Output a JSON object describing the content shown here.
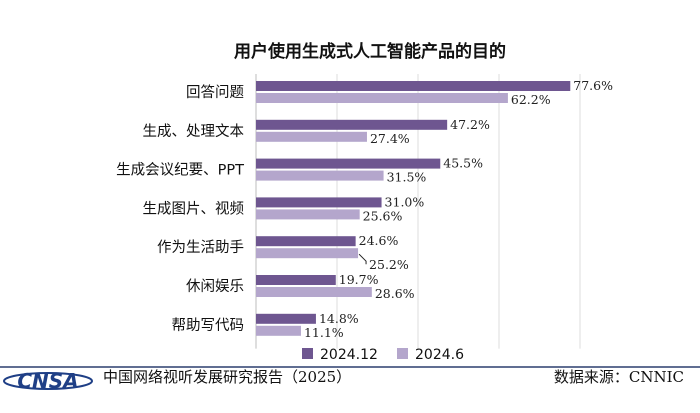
{
  "chart_data": {
    "type": "bar",
    "orientation": "horizontal",
    "title": "用户使用生成式人工智能产品的目的",
    "categories": [
      "回答问题",
      "生成、处理文本",
      "生成会议纪要、PPT",
      "生成图片、视频",
      "作为生活助手",
      "休闲娱乐",
      "帮助写代码"
    ],
    "series": [
      {
        "name": "2024.12",
        "values": [
          77.6,
          47.2,
          45.5,
          31.0,
          24.6,
          19.7,
          14.8
        ],
        "labels": [
          "77.6%",
          "47.2%",
          "45.5%",
          "31.0%",
          "24.6%",
          "19.7%",
          "14.8%"
        ],
        "color": "#6e5690"
      },
      {
        "name": "2024.6",
        "values": [
          62.2,
          27.4,
          31.5,
          25.6,
          25.2,
          28.6,
          11.1
        ],
        "labels": [
          "62.2%",
          "27.4%",
          "31.5%",
          "25.6%",
          "25.2%",
          "28.6%",
          "11.1%"
        ],
        "color": "#b4a6cc"
      }
    ],
    "xlim": [
      0,
      90
    ],
    "grid": true,
    "legend_position": "bottom"
  },
  "footer": {
    "logo_text": "CNSA",
    "source_report": "中国网络视听发展研究报告（2025）",
    "data_source": "数据来源：CNNIC"
  }
}
